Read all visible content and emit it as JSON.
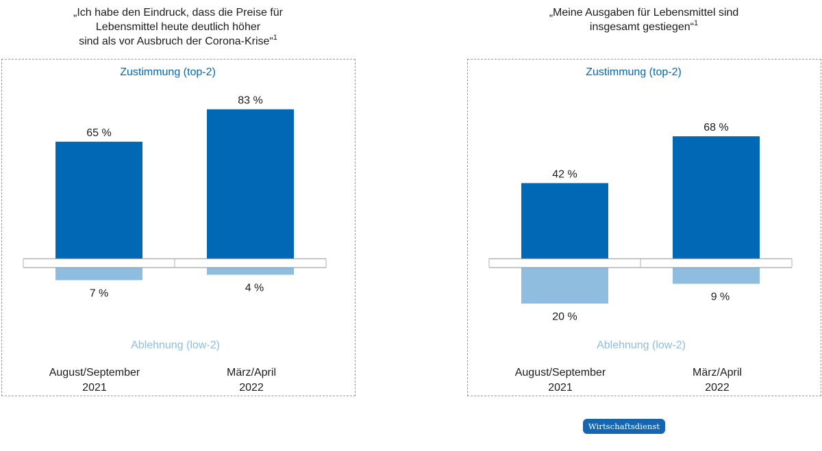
{
  "colors": {
    "agree": "#0068b4",
    "reject": "#8fbde0",
    "frame": "#9a9a9a"
  },
  "footnote_marker": "1",
  "brand": "Wirtschaftsdienst",
  "chart_data": [
    {
      "type": "bar",
      "title": "„Ich habe den Eindruck, dass die Preise für\nLebensmittel heute deutlich höher\nsind als vor Ausbruch der Corona-Krise“",
      "categories": [
        "August/September\n2021",
        "März/April\n2022"
      ],
      "series": [
        {
          "name": "Zustimmung (top-2)",
          "values": [
            65,
            83
          ],
          "labels": [
            "65 %",
            "83 %"
          ]
        },
        {
          "name": "Ablehnung (low-2)",
          "values": [
            7,
            4
          ],
          "labels": [
            "7 %",
            "4 %"
          ]
        }
      ],
      "xlabel": "",
      "ylabel": "",
      "grid": false
    },
    {
      "type": "bar",
      "title": "„Meine Ausgaben für Lebensmittel sind\ninsgesamt gestiegen“",
      "categories": [
        "August/September\n2021",
        "März/April\n2022"
      ],
      "series": [
        {
          "name": "Zustimmung (top-2)",
          "values": [
            42,
            68
          ],
          "labels": [
            "42 %",
            "68 %"
          ]
        },
        {
          "name": "Ablehnung (low-2)",
          "values": [
            20,
            9
          ],
          "labels": [
            "20 %",
            "9 %"
          ]
        }
      ],
      "xlabel": "",
      "ylabel": "",
      "grid": false
    }
  ]
}
